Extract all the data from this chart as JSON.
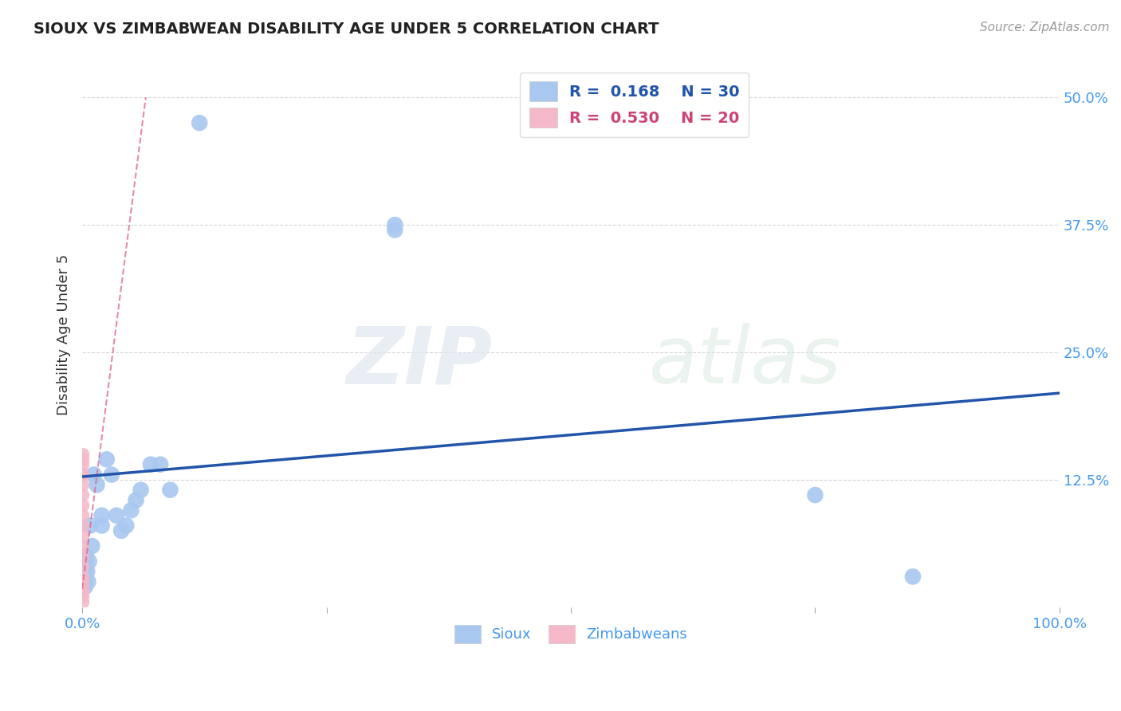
{
  "title": "SIOUX VS ZIMBABWEAN DISABILITY AGE UNDER 5 CORRELATION CHART",
  "source": "Source: ZipAtlas.com",
  "ylabel": "Disability Age Under 5",
  "ytick_labels": [
    "",
    "12.5%",
    "25.0%",
    "37.5%",
    "50.0%"
  ],
  "ytick_values": [
    0,
    0.125,
    0.25,
    0.375,
    0.5
  ],
  "xlim": [
    0,
    1.0
  ],
  "ylim": [
    0,
    0.535
  ],
  "legend_r_sioux": "0.168",
  "legend_n_sioux": "30",
  "legend_r_zimb": "0.530",
  "legend_n_zimb": "20",
  "sioux_color": "#a8c8f0",
  "sioux_line_color": "#2255aa",
  "zimb_color": "#f5b8c8",
  "zimb_line_color": "#dd6688",
  "watermark_zip": "ZIP",
  "watermark_atlas": "atlas",
  "background_color": "#ffffff",
  "sioux_x": [
    0.002,
    0.002,
    0.003,
    0.003,
    0.004,
    0.005,
    0.006,
    0.007,
    0.008,
    0.01,
    0.012,
    0.015,
    0.02,
    0.02,
    0.025,
    0.03,
    0.035,
    0.04,
    0.045,
    0.05,
    0.055,
    0.06,
    0.07,
    0.08,
    0.09,
    0.12,
    0.32,
    0.32,
    0.75,
    0.85
  ],
  "sioux_y": [
    0.04,
    0.025,
    0.02,
    0.04,
    0.05,
    0.035,
    0.025,
    0.045,
    0.08,
    0.06,
    0.13,
    0.12,
    0.08,
    0.09,
    0.145,
    0.13,
    0.09,
    0.075,
    0.08,
    0.095,
    0.105,
    0.115,
    0.14,
    0.14,
    0.115,
    0.475,
    0.37,
    0.375,
    0.11,
    0.03
  ],
  "zimb_x": [
    0.001,
    0.001,
    0.001,
    0.001,
    0.001,
    0.001,
    0.001,
    0.001,
    0.001,
    0.001,
    0.001,
    0.001,
    0.001,
    0.001,
    0.001,
    0.001,
    0.001,
    0.001,
    0.001,
    0.001
  ],
  "zimb_y": [
    0.005,
    0.01,
    0.015,
    0.02,
    0.025,
    0.03,
    0.04,
    0.05,
    0.06,
    0.07,
    0.08,
    0.09,
    0.1,
    0.11,
    0.12,
    0.13,
    0.13,
    0.14,
    0.145,
    0.15
  ],
  "zimb_line_x1": 0.0,
  "zimb_line_y1": 0.018,
  "zimb_line_x2": 0.065,
  "zimb_line_y2": 0.5,
  "sioux_line_x1": 0.0,
  "sioux_line_y1": 0.128,
  "sioux_line_x2": 1.0,
  "sioux_line_y2": 0.21
}
